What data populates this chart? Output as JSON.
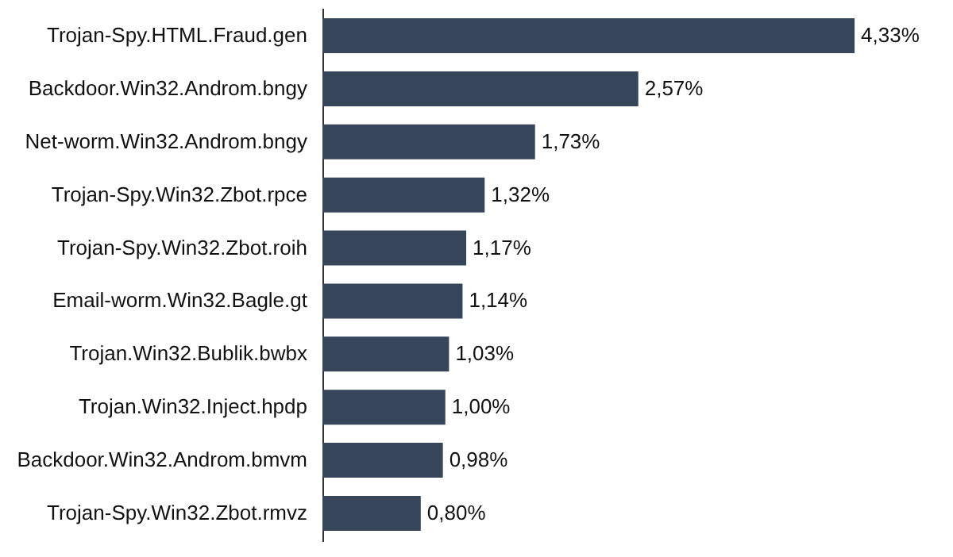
{
  "chart_data": {
    "type": "bar",
    "orientation": "horizontal",
    "categories": [
      "Trojan-Spy.HTML.Fraud.gen",
      "Backdoor.Win32.Androm.bngy",
      "Net-worm.Win32.Androm.bngy",
      "Trojan-Spy.Win32.Zbot.rpce",
      "Trojan-Spy.Win32.Zbot.roih",
      "Email-worm.Win32.Bagle.gt",
      "Trojan.Win32.Bublik.bwbx",
      "Trojan.Win32.Inject.hpdp",
      "Backdoor.Win32.Androm.bmvm",
      "Trojan-Spy.Win32.Zbot.rmvz"
    ],
    "values": [
      4.33,
      2.57,
      1.73,
      1.32,
      1.17,
      1.14,
      1.03,
      1.0,
      0.98,
      0.8
    ],
    "value_labels": [
      "4,33%",
      "2,57%",
      "1,73%",
      "1,32%",
      "1,17%",
      "1,14%",
      "1,03%",
      "1,00%",
      "0,98%",
      "0,80%"
    ],
    "color": "#36455a",
    "tick_labels": "y"
  }
}
